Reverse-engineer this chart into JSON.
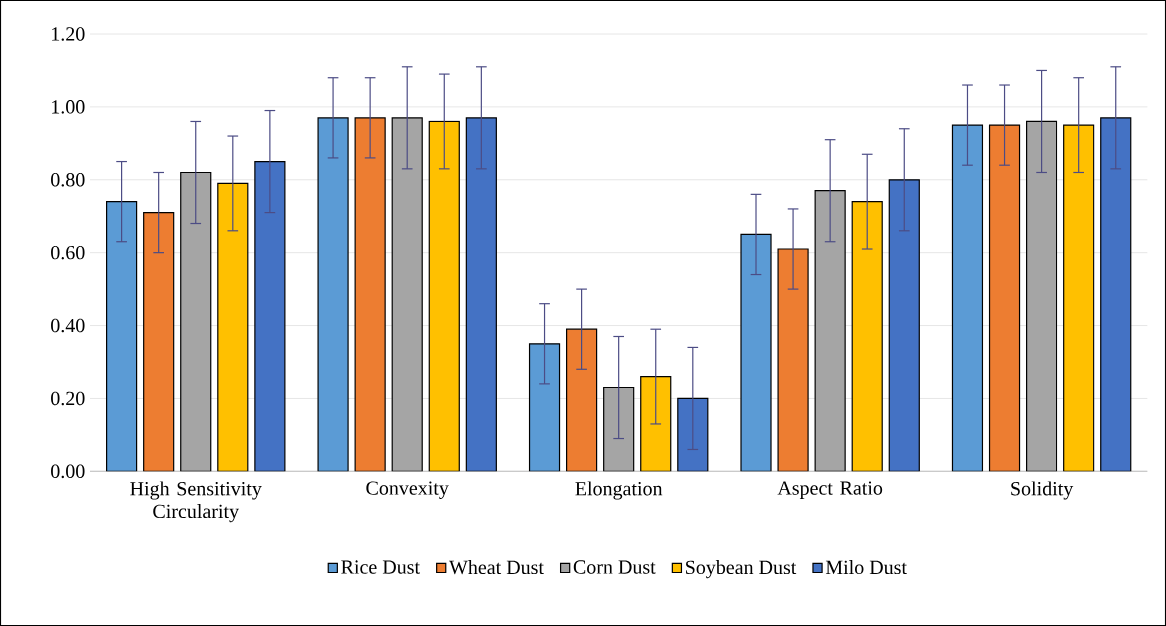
{
  "chart_data": {
    "type": "bar",
    "categories": [
      "High Sensitivity Circularity",
      "Convexity",
      "Elongation",
      "Aspect Ratio",
      "Solidity"
    ],
    "series": [
      {
        "name": "Rice Dust",
        "color": "#5b9bd5",
        "values": [
          0.74,
          0.97,
          0.35,
          0.65,
          0.95
        ],
        "errors": [
          0.11,
          0.11,
          0.11,
          0.11,
          0.11
        ]
      },
      {
        "name": "Wheat Dust",
        "color": "#ed7d31",
        "values": [
          0.71,
          0.97,
          0.39,
          0.61,
          0.95
        ],
        "errors": [
          0.11,
          0.11,
          0.11,
          0.11,
          0.11
        ]
      },
      {
        "name": "Corn Dust",
        "color": "#a5a5a5",
        "values": [
          0.82,
          0.97,
          0.23,
          0.77,
          0.96
        ],
        "errors": [
          0.14,
          0.14,
          0.14,
          0.14,
          0.14
        ]
      },
      {
        "name": "Soybean Dust",
        "color": "#ffc000",
        "values": [
          0.79,
          0.96,
          0.26,
          0.74,
          0.95
        ],
        "errors": [
          0.13,
          0.13,
          0.13,
          0.13,
          0.13
        ]
      },
      {
        "name": "Milo Dust",
        "color": "#4472c4",
        "values": [
          0.85,
          0.97,
          0.2,
          0.8,
          0.97
        ],
        "errors": [
          0.14,
          0.14,
          0.14,
          0.14,
          0.14
        ]
      }
    ],
    "ylim": [
      0,
      1.2
    ],
    "yticks": [
      {
        "value": 0,
        "label": "0.00"
      },
      {
        "value": 0.2,
        "label": "0.20"
      },
      {
        "value": 0.4,
        "label": "0.40"
      },
      {
        "value": 0.6,
        "label": "0.60"
      },
      {
        "value": 0.8,
        "label": "0.80"
      },
      {
        "value": 1.0,
        "label": "1.00"
      },
      {
        "value": 1.2,
        "label": "1.20"
      }
    ],
    "grid": "y",
    "legend": "bottom"
  }
}
